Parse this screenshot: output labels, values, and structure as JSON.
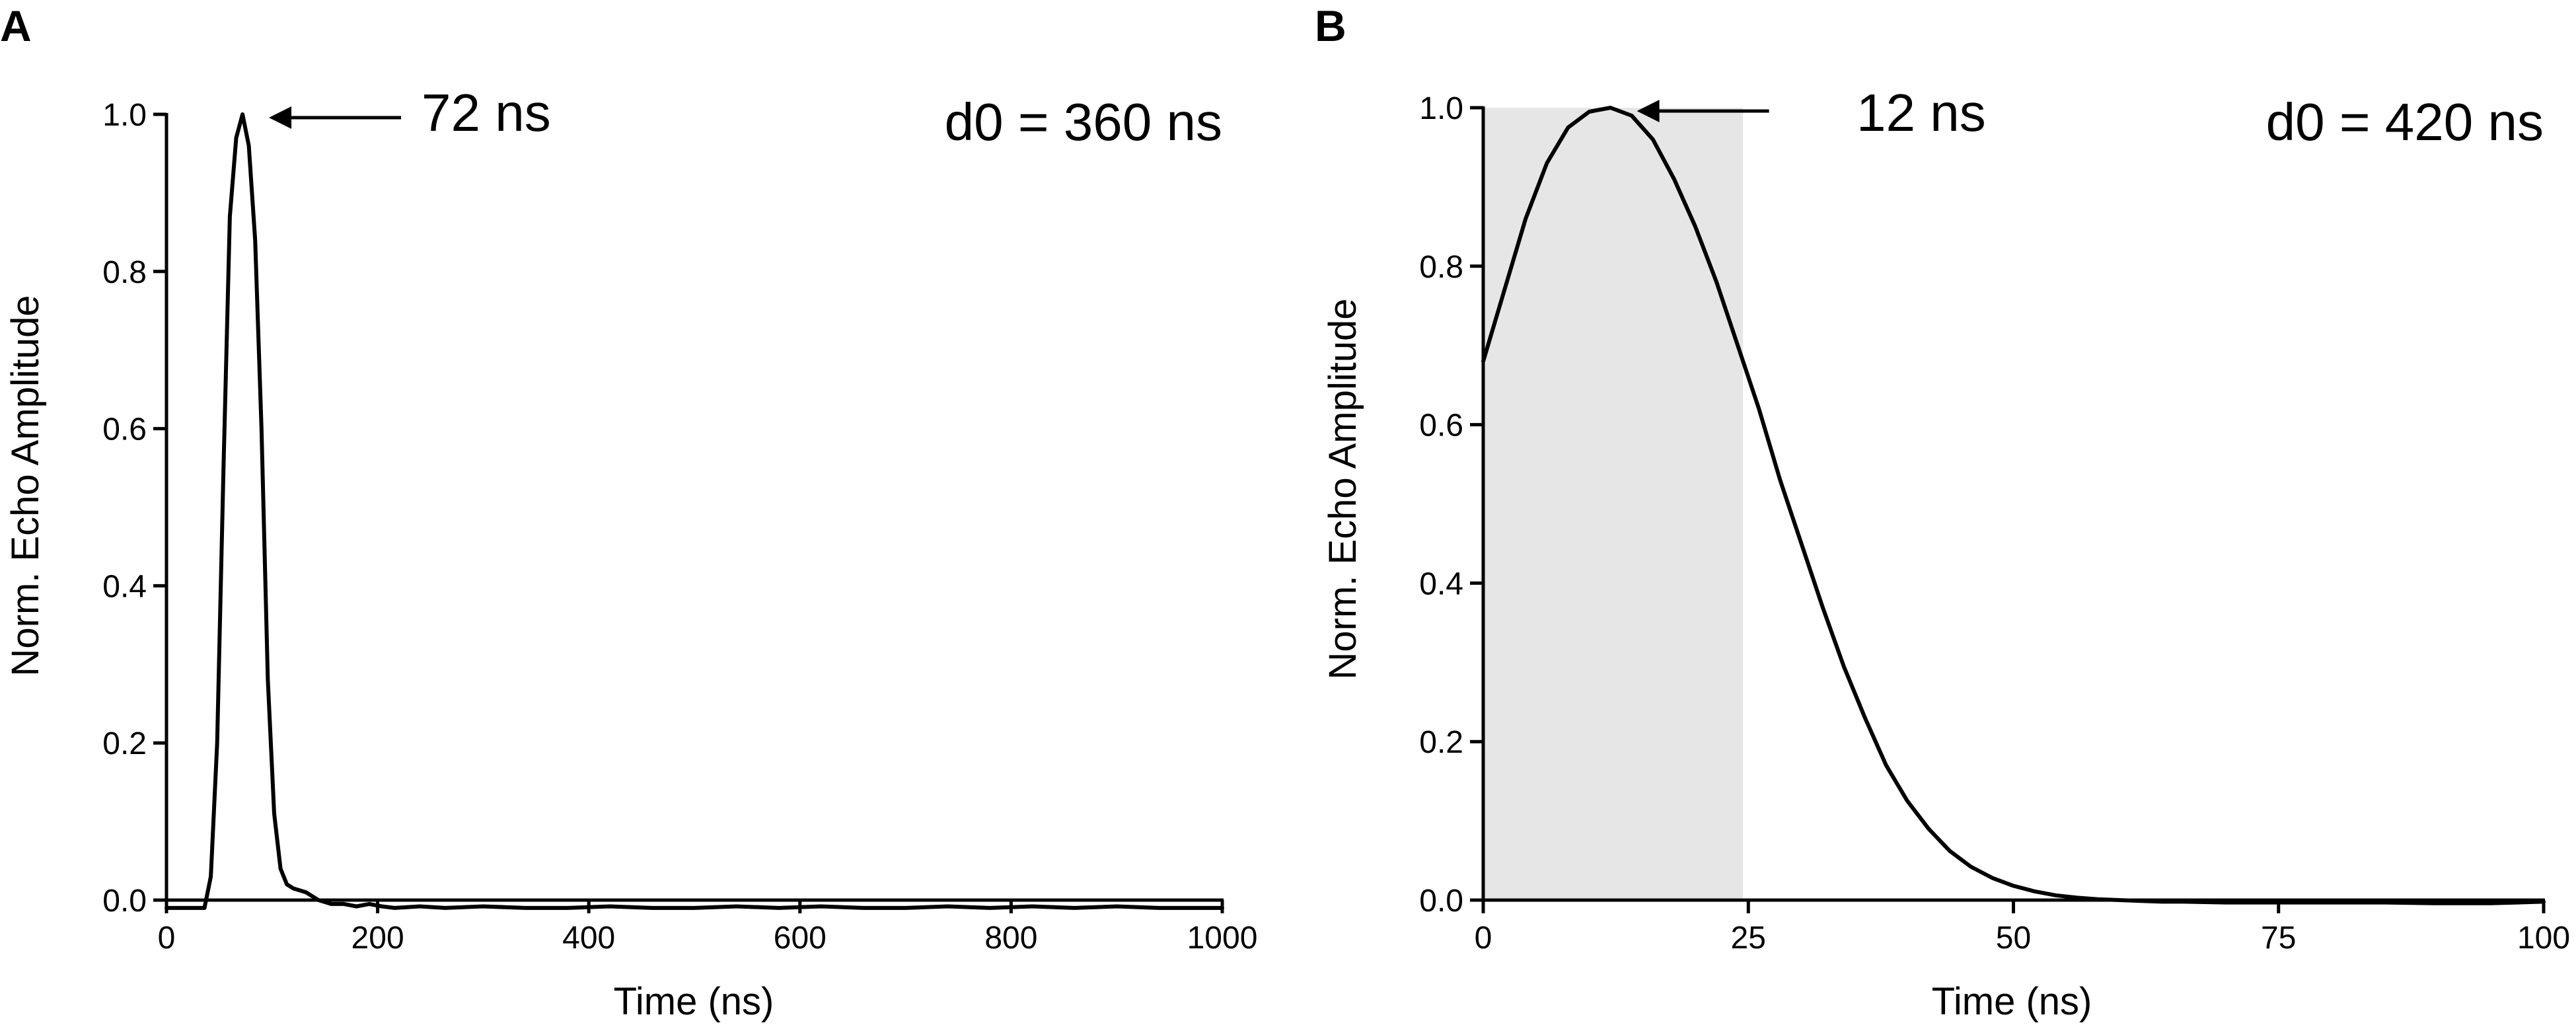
{
  "chart_data": [
    {
      "panel": "A",
      "type": "line",
      "xlabel": "Time (ns)",
      "ylabel": "Norm. Echo Amplitude",
      "xlim": [
        0,
        1000
      ],
      "ylim": [
        0.0,
        1.0
      ],
      "xticks": [
        0,
        200,
        400,
        600,
        800,
        1000
      ],
      "xtick_labels": [
        "0",
        "200",
        "400",
        "600",
        "800",
        "1000"
      ],
      "yticks": [
        0.0,
        0.2,
        0.4,
        0.6,
        0.8,
        1.0
      ],
      "ytick_labels": [
        "0.0",
        "0.2",
        "0.4",
        "0.6",
        "0.8",
        "1.0"
      ],
      "grid": false,
      "annotation": {
        "text": "72 ns",
        "x": 72,
        "y": 1.0
      },
      "corner_label": "d0 = 360 ns",
      "series": [
        {
          "color": "#000000",
          "x": [
            0,
            12,
            24,
            36,
            42,
            48,
            54,
            60,
            66,
            72,
            78,
            84,
            90,
            96,
            102,
            108,
            114,
            120,
            132,
            144,
            156,
            168,
            180,
            192,
            204,
            216,
            240,
            264,
            300,
            340,
            380,
            420,
            460,
            500,
            540,
            580,
            620,
            660,
            700,
            740,
            780,
            820,
            860,
            900,
            940,
            980,
            1000
          ],
          "y": [
            -0.01,
            -0.01,
            -0.01,
            -0.01,
            0.03,
            0.2,
            0.55,
            0.87,
            0.97,
            1.0,
            0.96,
            0.84,
            0.6,
            0.28,
            0.11,
            0.04,
            0.02,
            0.015,
            0.01,
            0.0,
            -0.005,
            -0.005,
            -0.008,
            -0.005,
            -0.008,
            -0.01,
            -0.008,
            -0.01,
            -0.008,
            -0.01,
            -0.01,
            -0.008,
            -0.01,
            -0.01,
            -0.008,
            -0.01,
            -0.008,
            -0.01,
            -0.01,
            -0.008,
            -0.01,
            -0.008,
            -0.01,
            -0.008,
            -0.01,
            -0.01,
            -0.01
          ]
        }
      ]
    },
    {
      "panel": "B",
      "type": "line",
      "xlabel": "Time (ns)",
      "ylabel": "Norm. Echo Amplitude",
      "xlim": [
        0,
        100
      ],
      "ylim": [
        0.0,
        1.0
      ],
      "xticks": [
        0,
        25,
        50,
        75,
        100
      ],
      "xtick_labels": [
        "0",
        "25",
        "50",
        "75",
        "100"
      ],
      "yticks": [
        0.0,
        0.2,
        0.4,
        0.6,
        0.8,
        1.0
      ],
      "ytick_labels": [
        "0.0",
        "0.2",
        "0.4",
        "0.6",
        "0.8",
        "1.0"
      ],
      "grid": false,
      "shaded_region": {
        "x": [
          0,
          24.5
        ],
        "color": "#e6e6e6"
      },
      "annotation": {
        "text": "12 ns",
        "x": 12,
        "y": 1.0
      },
      "corner_label": "d0 = 420 ns",
      "series": [
        {
          "color": "#000000",
          "x": [
            0,
            2,
            4,
            6,
            8,
            10,
            12,
            14,
            16,
            18,
            20,
            22,
            24,
            26,
            28,
            30,
            32,
            34,
            36,
            38,
            40,
            42,
            44,
            46,
            48,
            50,
            52,
            54,
            56,
            58,
            60,
            62,
            64,
            66,
            70,
            75,
            80,
            85,
            90,
            95,
            100
          ],
          "y": [
            0.68,
            0.77,
            0.86,
            0.93,
            0.975,
            0.995,
            1.0,
            0.99,
            0.96,
            0.91,
            0.85,
            0.78,
            0.7,
            0.62,
            0.53,
            0.45,
            0.37,
            0.295,
            0.23,
            0.17,
            0.125,
            0.09,
            0.062,
            0.042,
            0.028,
            0.018,
            0.011,
            0.006,
            0.003,
            0.001,
            0.0,
            -0.001,
            -0.002,
            -0.002,
            -0.003,
            -0.003,
            -0.003,
            -0.003,
            -0.004,
            -0.004,
            -0.002
          ]
        }
      ]
    }
  ]
}
